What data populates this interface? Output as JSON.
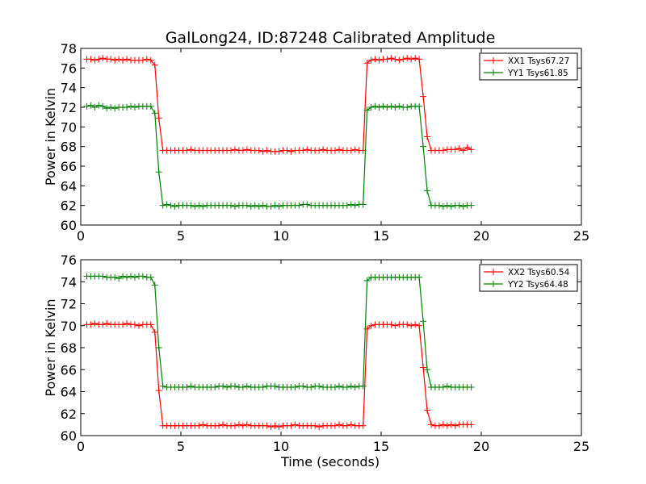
{
  "chart_data": {
    "type": "line",
    "title": "GalLong24, ID:87248 Calibrated Amplitude",
    "xlabel": "Time (seconds)",
    "x": [
      0.3,
      0.5,
      0.7,
      0.9,
      1.1,
      1.3,
      1.5,
      1.7,
      1.9,
      2.1,
      2.3,
      2.5,
      2.7,
      2.9,
      3.1,
      3.3,
      3.5,
      3.7,
      3.9,
      4.1,
      4.3,
      4.5,
      4.7,
      4.9,
      5.1,
      5.3,
      5.5,
      5.7,
      5.9,
      6.1,
      6.3,
      6.5,
      6.7,
      6.9,
      7.1,
      7.3,
      7.5,
      7.7,
      7.9,
      8.1,
      8.3,
      8.5,
      8.7,
      8.9,
      9.1,
      9.3,
      9.5,
      9.7,
      9.9,
      10.1,
      10.3,
      10.5,
      10.7,
      10.9,
      11.1,
      11.3,
      11.5,
      11.7,
      11.9,
      12.1,
      12.3,
      12.5,
      12.7,
      12.9,
      13.1,
      13.3,
      13.5,
      13.7,
      13.9,
      14.1,
      14.3,
      14.5,
      14.7,
      14.9,
      15.1,
      15.3,
      15.5,
      15.7,
      15.9,
      16.1,
      16.3,
      16.5,
      16.7,
      16.9,
      17.1,
      17.3,
      17.5,
      17.7,
      17.9,
      18.1,
      18.3,
      18.5,
      18.7,
      18.9,
      19.1,
      19.3,
      19.5,
      19.7,
      19.9,
      20.1
    ],
    "panels": [
      {
        "ylabel": "Power in Kelvin",
        "xlim": [
          0,
          25
        ],
        "ylim": [
          60,
          78
        ],
        "xticks": [
          "0",
          "5",
          "10",
          "15",
          "20",
          "25"
        ],
        "yticks": [
          "60",
          "62",
          "64",
          "66",
          "68",
          "70",
          "72",
          "74",
          "76",
          "78"
        ],
        "legend": "top-right",
        "series": [
          {
            "name": "XX1 Tsys67.27",
            "color": "#ff0000",
            "values": [
              76.9,
              76.9,
              76.8,
              76.9,
              77.0,
              76.9,
              76.9,
              76.8,
              76.9,
              76.8,
              76.9,
              76.8,
              76.8,
              76.8,
              76.8,
              76.9,
              76.8,
              76.3,
              70.9,
              67.6,
              67.6,
              67.6,
              67.6,
              67.6,
              67.6,
              67.6,
              67.7,
              67.6,
              67.6,
              67.6,
              67.6,
              67.6,
              67.6,
              67.6,
              67.6,
              67.6,
              67.6,
              67.7,
              67.6,
              67.6,
              67.7,
              67.6,
              67.6,
              67.6,
              67.5,
              67.6,
              67.5,
              67.5,
              67.5,
              67.6,
              67.6,
              67.5,
              67.6,
              67.6,
              67.6,
              67.7,
              67.6,
              67.6,
              67.6,
              67.7,
              67.6,
              67.6,
              67.6,
              67.7,
              67.6,
              67.6,
              67.6,
              67.7,
              67.6,
              67.6,
              76.5,
              76.8,
              76.9,
              76.8,
              76.9,
              76.9,
              77.0,
              76.9,
              76.8,
              76.9,
              77.0,
              76.9,
              77.0,
              76.9,
              73.1,
              69.0,
              67.6,
              67.6,
              67.6,
              67.6,
              67.7,
              67.7,
              67.7,
              67.8,
              67.6,
              67.9,
              67.7
            ]
          },
          {
            "name": "YY1 Tsys61.85",
            "color": "#008000",
            "values": [
              72.1,
              72.2,
              72.0,
              72.2,
              72.1,
              71.9,
              72.0,
              71.9,
              72.0,
              72.0,
              72.0,
              72.1,
              72.0,
              72.1,
              72.1,
              72.1,
              72.1,
              71.4,
              65.4,
              62.0,
              62.1,
              62.0,
              61.9,
              62.0,
              62.0,
              62.0,
              62.0,
              61.9,
              62.0,
              61.9,
              62.0,
              62.0,
              62.0,
              62.0,
              62.0,
              62.0,
              62.0,
              61.9,
              62.0,
              62.0,
              62.0,
              61.9,
              62.0,
              61.9,
              62.0,
              61.9,
              61.9,
              62.0,
              61.9,
              62.0,
              62.0,
              62.0,
              62.0,
              62.0,
              62.1,
              62.1,
              62.0,
              62.0,
              62.0,
              62.0,
              62.0,
              62.0,
              62.0,
              62.0,
              62.0,
              62.0,
              62.1,
              62.0,
              62.1,
              62.1,
              71.7,
              72.0,
              72.1,
              72.0,
              72.1,
              72.0,
              72.1,
              72.0,
              72.1,
              72.0,
              72.0,
              72.1,
              72.1,
              72.1,
              68.0,
              63.5,
              62.0,
              62.0,
              62.0,
              61.9,
              62.0,
              61.9,
              62.0,
              62.0,
              61.9,
              62.0,
              62.0
            ]
          }
        ]
      },
      {
        "ylabel": "Power in Kelvin",
        "xlim": [
          0,
          25
        ],
        "ylim": [
          60,
          76
        ],
        "xticks": [
          "0",
          "5",
          "10",
          "15",
          "20",
          "25"
        ],
        "yticks": [
          "60",
          "62",
          "64",
          "66",
          "68",
          "70",
          "72",
          "74",
          "76"
        ],
        "legend": "top-right",
        "series": [
          {
            "name": "XX2 Tsys60.54",
            "color": "#ff0000",
            "values": [
              70.1,
              70.1,
              70.2,
              70.1,
              70.1,
              70.2,
              70.1,
              70.1,
              70.1,
              70.1,
              70.2,
              70.1,
              70.1,
              70.0,
              70.1,
              70.1,
              70.1,
              69.4,
              64.1,
              60.9,
              60.9,
              60.9,
              60.9,
              60.9,
              60.9,
              60.9,
              60.9,
              60.9,
              60.9,
              61.0,
              60.9,
              60.9,
              60.9,
              60.9,
              61.0,
              60.9,
              60.9,
              60.9,
              61.0,
              60.9,
              61.0,
              60.9,
              60.9,
              60.9,
              60.9,
              60.9,
              60.8,
              60.9,
              60.8,
              60.9,
              60.9,
              60.9,
              61.0,
              60.9,
              60.9,
              60.9,
              60.9,
              60.9,
              60.8,
              60.9,
              60.9,
              60.9,
              60.9,
              61.0,
              60.9,
              60.9,
              61.0,
              60.9,
              60.9,
              60.9,
              69.7,
              70.0,
              70.1,
              70.1,
              70.1,
              70.1,
              70.1,
              70.0,
              70.1,
              70.1,
              70.1,
              70.0,
              70.1,
              70.0,
              66.2,
              62.3,
              61.0,
              60.9,
              60.9,
              61.0,
              60.9,
              61.0,
              60.9,
              61.0,
              61.0,
              61.0,
              61.0
            ]
          },
          {
            "name": "YY2 Tsys64.48",
            "color": "#008000",
            "values": [
              74.5,
              74.5,
              74.5,
              74.5,
              74.5,
              74.4,
              74.4,
              74.4,
              74.3,
              74.5,
              74.4,
              74.5,
              74.4,
              74.5,
              74.5,
              74.4,
              74.4,
              73.7,
              68.0,
              64.5,
              64.4,
              64.4,
              64.4,
              64.4,
              64.4,
              64.4,
              64.5,
              64.4,
              64.4,
              64.4,
              64.4,
              64.4,
              64.4,
              64.5,
              64.5,
              64.4,
              64.5,
              64.5,
              64.4,
              64.4,
              64.5,
              64.4,
              64.4,
              64.4,
              64.4,
              64.5,
              64.5,
              64.5,
              64.4,
              64.4,
              64.4,
              64.4,
              64.4,
              64.5,
              64.5,
              64.4,
              64.4,
              64.5,
              64.5,
              64.4,
              64.4,
              64.4,
              64.4,
              64.5,
              64.4,
              64.4,
              64.5,
              64.4,
              64.5,
              64.5,
              74.1,
              74.4,
              74.4,
              74.4,
              74.4,
              74.4,
              74.4,
              74.4,
              74.4,
              74.4,
              74.4,
              74.4,
              74.4,
              74.4,
              70.4,
              66.0,
              64.4,
              64.4,
              64.4,
              64.4,
              64.5,
              64.4,
              64.4,
              64.4,
              64.4,
              64.4,
              64.4
            ]
          }
        ]
      }
    ]
  }
}
